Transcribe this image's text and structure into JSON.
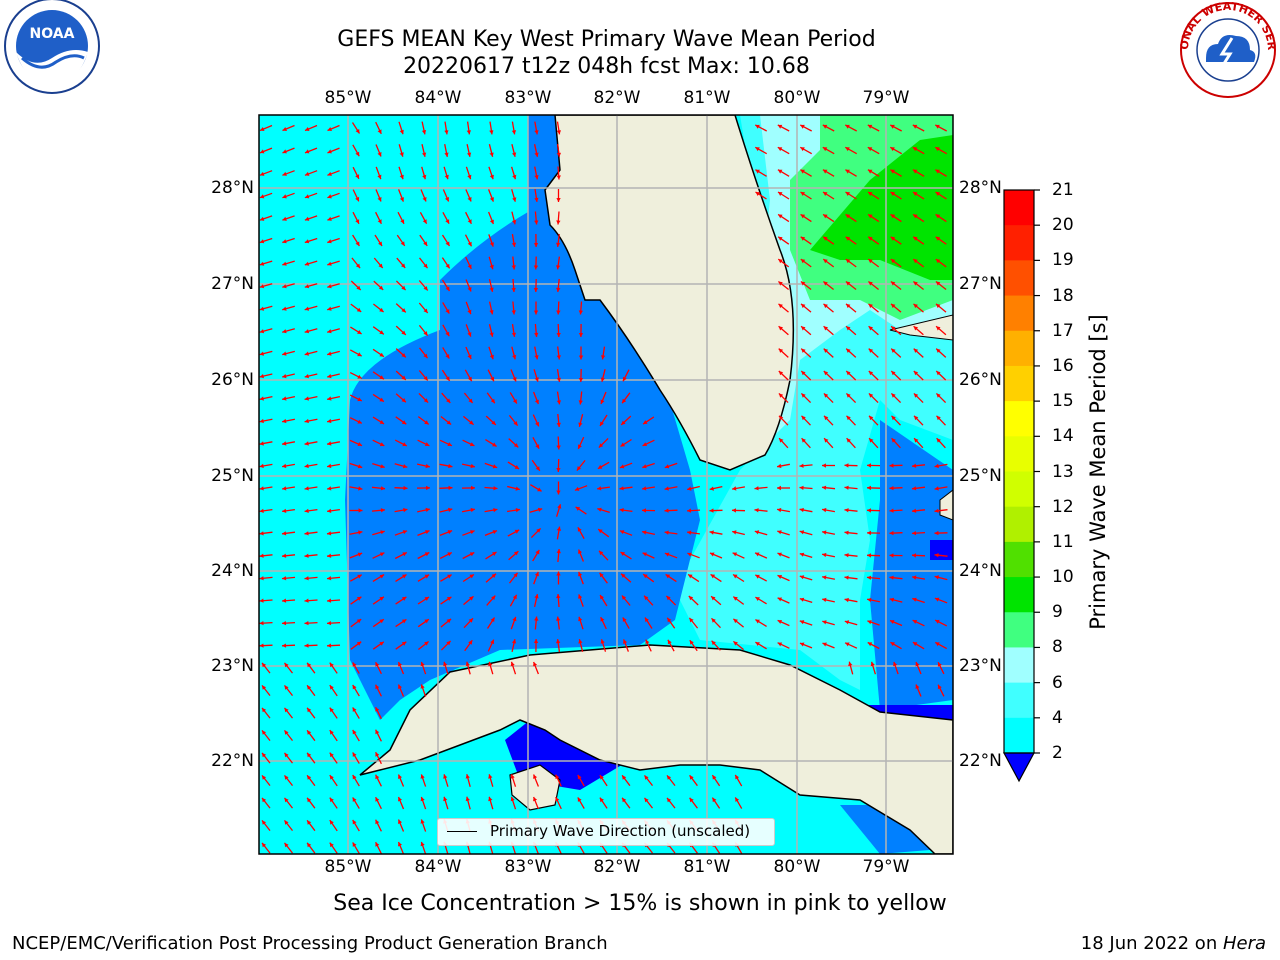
{
  "header": {
    "title_line1": "GEFS MEAN Key West Primary Wave Mean Period",
    "title_line2": "20220617 t12z 048h fcst   Max: 10.68"
  },
  "logos": {
    "left": {
      "icon": "noaa-logo-icon",
      "text": "NOAA"
    },
    "right": {
      "icon": "nws-logo-icon",
      "ring_text": "NATIONAL WEATHER SERVICE"
    }
  },
  "map": {
    "lon_labels": [
      "85°W",
      "84°W",
      "83°W",
      "82°W",
      "81°W",
      "80°W",
      "79°W"
    ],
    "lat_labels": [
      "28°N",
      "27°N",
      "26°N",
      "25°N",
      "24°N",
      "23°N",
      "22°N"
    ],
    "legend_label": "Primary Wave Direction (unscaled)",
    "arrow_color": "#ff0000",
    "land_color": "#efefdc"
  },
  "colorbar": {
    "title": "Primary Wave Mean Period [s]",
    "ticks": [
      "21",
      "20",
      "19",
      "18",
      "17",
      "16",
      "15",
      "14",
      "13",
      "12",
      "11",
      "10",
      "9",
      "8",
      "6",
      "4",
      "2"
    ],
    "colors": [
      "#0000ff",
      "#0080ff",
      "#00ffff",
      "#40ffff",
      "#a0ffff",
      "#40ff80",
      "#00e400",
      "#50e000",
      "#b0f000",
      "#d0ff00",
      "#e8ff00",
      "#ffff00",
      "#ffd000",
      "#ffb000",
      "#ff8000",
      "#ff5000",
      "#ff2000",
      "#ff0000"
    ]
  },
  "footer": {
    "ice_note": "Sea Ice Concentration > 15% is shown in pink to yellow",
    "left": "NCEP/EMC/Verification Post Processing Product Generation Branch",
    "right_date": "18 Jun 2022 on ",
    "right_host": "Hera"
  }
}
